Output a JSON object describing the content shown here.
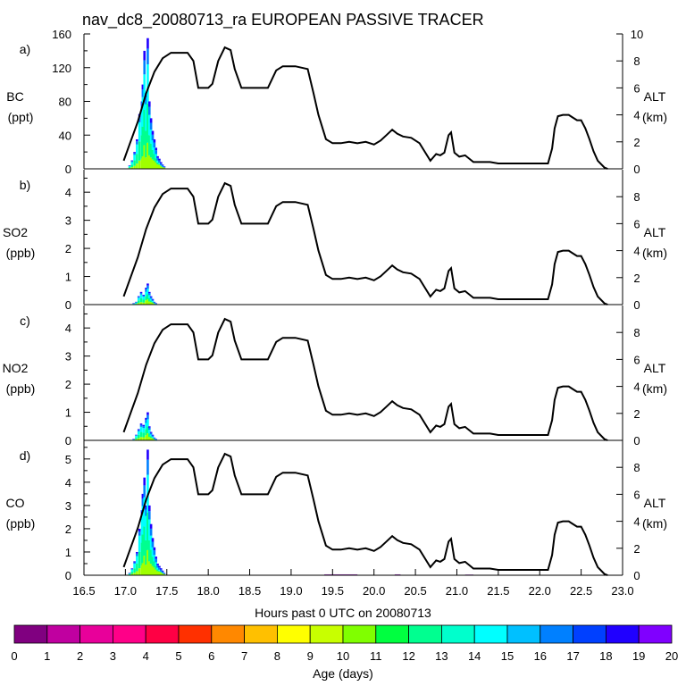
{
  "chart_data": {
    "type": "area",
    "title": "nav_dc8_20080713_ra EUROPEAN PASSIVE TRACER",
    "xlabel": "Hours past 0 UTC on 20080713",
    "xlim": [
      16.5,
      23.0
    ],
    "xticks": [
      "16.5",
      "17.0",
      "17.5",
      "18.0",
      "18.5",
      "19.0",
      "19.5",
      "20.0",
      "20.5",
      "21.0",
      "21.5",
      "22.0",
      "22.5",
      "23.0"
    ],
    "alt_label": "ALT",
    "alt_unit": "(km)",
    "alt_ylim": [
      0,
      10
    ],
    "altitude_profile": {
      "x": [
        16.98,
        17.05,
        17.15,
        17.25,
        17.35,
        17.45,
        17.55,
        17.65,
        17.75,
        17.82,
        17.88,
        18.0,
        18.05,
        18.12,
        18.2,
        18.27,
        18.32,
        18.4,
        18.5,
        18.6,
        18.72,
        18.82,
        18.9,
        19.05,
        19.2,
        19.27,
        19.33,
        19.42,
        19.5,
        19.6,
        19.7,
        19.8,
        19.9,
        20.0,
        20.08,
        20.15,
        20.22,
        20.28,
        20.35,
        20.45,
        20.55,
        20.62,
        20.68,
        20.75,
        20.8,
        20.85,
        20.9,
        20.93,
        20.97,
        21.03,
        21.1,
        21.2,
        21.3,
        21.4,
        21.5,
        21.6,
        21.8,
        22.0,
        22.1,
        22.15,
        22.18,
        22.22,
        22.28,
        22.35,
        22.4,
        22.45,
        22.5,
        22.55,
        22.6,
        22.65,
        22.7,
        22.78,
        22.82
      ],
      "y": [
        0.6,
        1.8,
        3.5,
        5.6,
        7.2,
        8.2,
        8.6,
        8.6,
        8.6,
        8.0,
        6.0,
        6.0,
        6.3,
        8.0,
        9.0,
        8.8,
        7.4,
        6.0,
        6.0,
        6.0,
        6.0,
        7.3,
        7.6,
        7.6,
        7.4,
        5.6,
        4.0,
        2.2,
        1.9,
        1.9,
        2.0,
        1.9,
        2.0,
        1.8,
        2.1,
        2.5,
        2.9,
        2.6,
        2.4,
        2.3,
        1.9,
        1.2,
        0.6,
        1.1,
        1.0,
        1.2,
        2.5,
        2.7,
        1.2,
        0.9,
        1.0,
        0.5,
        0.5,
        0.5,
        0.4,
        0.4,
        0.4,
        0.4,
        0.4,
        1.5,
        3.0,
        3.9,
        4.0,
        4.0,
        3.8,
        3.6,
        3.6,
        3.0,
        2.2,
        1.3,
        0.6,
        0.1,
        0.0
      ]
    },
    "age_colors": [
      "#800080",
      "#c000a0",
      "#e8009a",
      "#ff0088",
      "#ff0044",
      "#ff3000",
      "#ff8800",
      "#ffc000",
      "#ffff00",
      "#c8ff00",
      "#80ff00",
      "#00ff40",
      "#00ff90",
      "#00ffcc",
      "#00ffff",
      "#00c0ff",
      "#0080ff",
      "#0040ff",
      "#2000ff",
      "#8000ff"
    ],
    "colorbar": {
      "label": "Age (days)",
      "ticks": [
        "0",
        "1",
        "2",
        "3",
        "4",
        "5",
        "6",
        "7",
        "8",
        "9",
        "10",
        "11",
        "12",
        "13",
        "14",
        "15",
        "16",
        "17",
        "18",
        "19",
        "20"
      ]
    },
    "panels": [
      {
        "id": "a)",
        "species": "BC",
        "unit": "(ppt)",
        "ylim": [
          0,
          160
        ],
        "yticks": [
          "0",
          "40",
          "80",
          "120",
          "160"
        ],
        "alt_ticks": [
          "0",
          "2",
          "4",
          "6",
          "8",
          "10"
        ],
        "tracer": {
          "x": [
            17.05,
            17.08,
            17.11,
            17.14,
            17.17,
            17.2,
            17.21,
            17.23,
            17.25,
            17.27,
            17.29,
            17.31,
            17.33,
            17.35,
            17.37,
            17.39,
            17.41,
            17.43,
            17.45,
            17.47
          ],
          "total": [
            4,
            10,
            20,
            35,
            65,
            80,
            100,
            140,
            90,
            155,
            80,
            60,
            45,
            35,
            25,
            15,
            12,
            8,
            5,
            3
          ],
          "fresh_fraction": [
            0.6,
            0.6,
            0.65,
            0.65,
            0.7,
            0.7,
            0.7,
            0.6,
            0.7,
            0.6,
            0.6,
            0.55,
            0.5,
            0.45,
            0.4,
            0.3,
            0.2,
            0.1,
            0.05,
            0.0
          ]
        },
        "background_tracer": []
      },
      {
        "id": "b)",
        "species": "SO2",
        "unit": "(ppb)",
        "ylim": [
          0,
          4.8
        ],
        "yticks": [
          "0",
          "1",
          "2",
          "3",
          "4"
        ],
        "alt_ticks": [
          "0",
          "2",
          "4",
          "6",
          "8"
        ],
        "tracer": {
          "x": [
            17.1,
            17.13,
            17.16,
            17.19,
            17.22,
            17.25,
            17.27,
            17.29,
            17.31,
            17.33,
            17.35,
            17.37
          ],
          "total": [
            0.05,
            0.1,
            0.3,
            0.45,
            0.35,
            0.6,
            0.75,
            0.45,
            0.3,
            0.2,
            0.1,
            0.05
          ],
          "fresh_fraction": [
            0.5,
            0.6,
            0.6,
            0.6,
            0.6,
            0.5,
            0.5,
            0.5,
            0.4,
            0.3,
            0.2,
            0.1
          ]
        },
        "background_tracer": []
      },
      {
        "id": "c)",
        "species": "NO2",
        "unit": "(ppb)",
        "ylim": [
          0,
          4.8
        ],
        "yticks": [
          "0",
          "1",
          "2",
          "3",
          "4"
        ],
        "alt_ticks": [
          "0",
          "2",
          "4",
          "6",
          "8"
        ],
        "tracer": {
          "x": [
            17.1,
            17.13,
            17.16,
            17.19,
            17.22,
            17.25,
            17.27,
            17.29,
            17.31,
            17.33,
            17.35,
            17.37
          ],
          "total": [
            0.05,
            0.2,
            0.4,
            0.6,
            0.55,
            0.8,
            1.0,
            0.5,
            0.3,
            0.2,
            0.1,
            0.05
          ],
          "fresh_fraction": [
            0.6,
            0.6,
            0.6,
            0.6,
            0.6,
            0.55,
            0.5,
            0.5,
            0.4,
            0.3,
            0.2,
            0.1
          ]
        },
        "background_tracer": []
      },
      {
        "id": "d)",
        "species": "CO",
        "unit": "(ppb)",
        "ylim": [
          0,
          5.8
        ],
        "yticks": [
          "0",
          "1",
          "2",
          "3",
          "4",
          "5"
        ],
        "alt_ticks": [
          "0",
          "2",
          "4",
          "6",
          "8"
        ],
        "tracer": {
          "x": [
            17.05,
            17.08,
            17.11,
            17.14,
            17.17,
            17.2,
            17.21,
            17.23,
            17.25,
            17.27,
            17.29,
            17.31,
            17.33,
            17.35,
            17.37,
            17.39,
            17.41,
            17.43,
            17.45,
            17.47
          ],
          "total": [
            0.1,
            0.3,
            0.6,
            1.0,
            2.0,
            2.8,
            3.5,
            4.2,
            3.0,
            5.4,
            3.0,
            2.2,
            1.6,
            1.2,
            0.8,
            0.5,
            0.4,
            0.3,
            0.2,
            0.1
          ],
          "fresh_fraction": [
            0.6,
            0.6,
            0.65,
            0.65,
            0.7,
            0.7,
            0.7,
            0.6,
            0.7,
            0.6,
            0.6,
            0.55,
            0.5,
            0.45,
            0.4,
            0.3,
            0.2,
            0.1,
            0.05,
            0.0
          ]
        },
        "background_tracer": [
          {
            "x": 19.4,
            "x2": 19.8,
            "value": 0.04
          },
          {
            "x": 20.25,
            "x2": 20.32,
            "value": 0.04
          },
          {
            "x": 21.1,
            "x2": 21.2,
            "value": 0.03
          }
        ]
      }
    ]
  }
}
